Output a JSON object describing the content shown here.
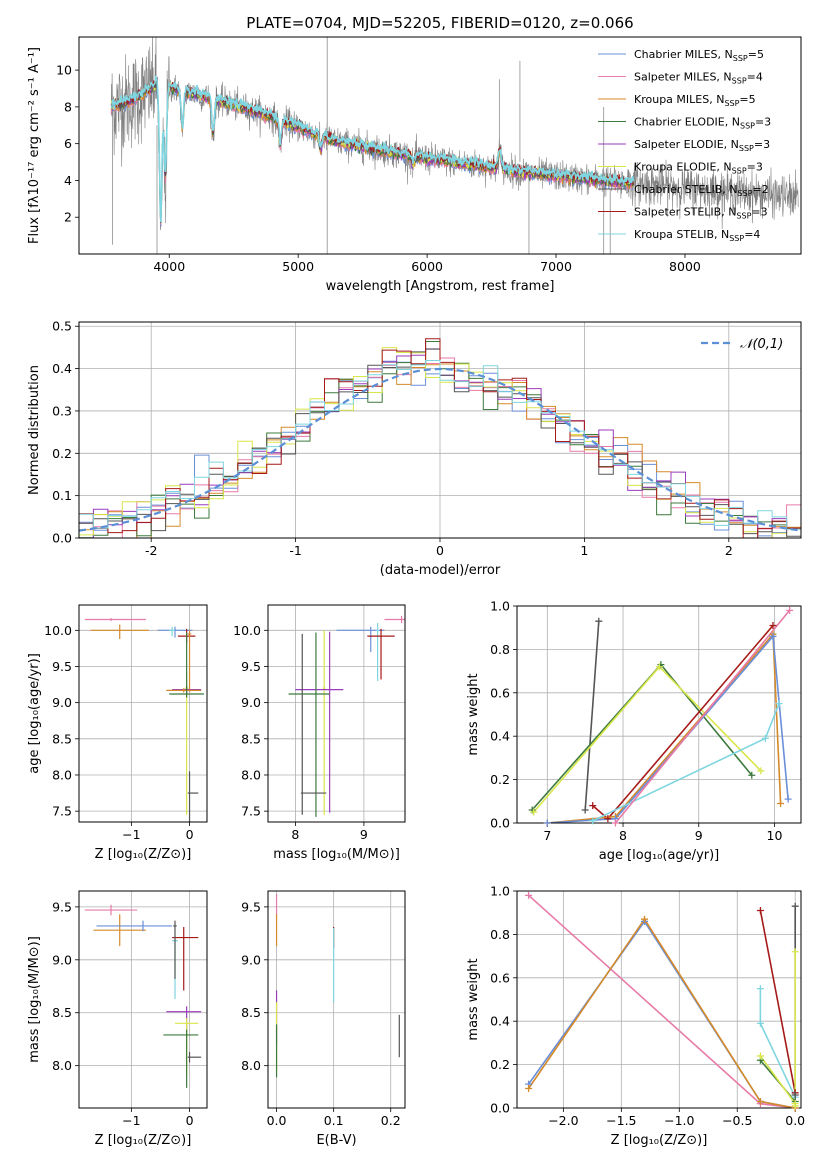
{
  "colors": {
    "chabMILES": "#6a8fd8",
    "salpMILES": "#e87aa8",
    "krouMILES": "#d58a2a",
    "chabELODIE": "#3d7a3d",
    "salpELODIE": "#9b3bbf",
    "krouELODIE": "#d8e64a",
    "chabSTELIB": "#555555",
    "salpSTELIB": "#a61a1a",
    "krouSTELIB": "#7fd6e0",
    "data": "#7f7f7f",
    "normal": "#5b8fd6"
  },
  "chart_data": [
    {
      "type": "line",
      "title": "PLATE=0704, MJD=52205, FIBERID=0120, z=0.066",
      "xlabel": "wavelength [Angstrom, rest frame]",
      "ylabel": "Flux [fλ10⁻¹⁷ erg cm⁻² s⁻¹ A⁻¹]",
      "xlim": [
        3300,
        8900
      ],
      "ylim": [
        0,
        11.8
      ],
      "xticks": [
        4000,
        5000,
        6000,
        7000,
        8000
      ],
      "yticks": [
        2,
        4,
        6,
        8,
        10
      ],
      "legend_position": "top-right",
      "series": [
        {
          "name": "Chabrier MILES, N_SSP=5",
          "key": "chabMILES"
        },
        {
          "name": "Salpeter MILES, N_SSP=4",
          "key": "salpMILES"
        },
        {
          "name": "Kroupa MILES, N_SSP=5",
          "key": "krouMILES"
        },
        {
          "name": "Chabrier ELODIE, N_SSP=3",
          "key": "chabELODIE"
        },
        {
          "name": "Salpeter ELODIE, N_SSP=3",
          "key": "salpELODIE"
        },
        {
          "name": "Kroupa ELODIE, N_SSP=3",
          "key": "krouELODIE"
        },
        {
          "name": "Chabrier STELIB, N_SSP=2",
          "key": "chabSTELIB"
        },
        {
          "name": "Salpeter STELIB, N_SSP=3",
          "key": "salpSTELIB"
        },
        {
          "name": "Kroupa STELIB, N_SSP=4",
          "key": "krouSTELIB"
        }
      ],
      "continuum": {
        "x": [
          3550,
          3700,
          3900,
          4100,
          4400,
          4700,
          5000,
          5300,
          5600,
          6000,
          6400,
          6800,
          7200,
          7500,
          8000,
          8500,
          8800
        ],
        "y": [
          8.0,
          8.3,
          9.2,
          8.9,
          8.3,
          7.7,
          6.9,
          6.1,
          5.7,
          5.2,
          4.8,
          4.4,
          4.1,
          3.9,
          3.6,
          3.3,
          3.1
        ]
      }
    },
    {
      "type": "step",
      "xlabel": "(data-model)/error",
      "ylabel": "Normed distribution",
      "xlim": [
        -2.5,
        2.5
      ],
      "ylim": [
        0,
        0.51
      ],
      "xticks": [
        -2,
        -1,
        0,
        1,
        2
      ],
      "yticks": [
        0.0,
        0.1,
        0.2,
        0.3,
        0.4,
        0.5
      ],
      "legend_position": "top-right",
      "reference": "𝒩(0,1)"
    },
    {
      "type": "errorbar",
      "xlabel": "Z [log₁₀(Z/Z⊙)]",
      "ylabel": "age  [log₁₀(age/yr)]",
      "xlim": [
        -1.9,
        0.3
      ],
      "ylim": [
        7.35,
        10.35
      ],
      "xticks": [
        -1,
        0
      ],
      "xticklabels": [
        "−1",
        "0"
      ],
      "yticks": [
        7.5,
        8.0,
        8.5,
        9.0,
        9.5,
        10.0
      ],
      "points": [
        {
          "k": "salpMILES",
          "x": -1.35,
          "xe": [
            0.45,
            0.6
          ],
          "y": 10.15,
          "ye": [
            0.02,
            0.02
          ]
        },
        {
          "k": "krouMILES",
          "x": -1.2,
          "xe": [
            0.5,
            0.5
          ],
          "y": 10.0,
          "ye": [
            0.12,
            0.08
          ]
        },
        {
          "k": "chabMILES",
          "x": -0.25,
          "xe": [
            0.3,
            0.3
          ],
          "y": 10.0,
          "ye": [
            0.1,
            0.05
          ]
        },
        {
          "k": "krouSTELIB",
          "x": -0.3,
          "xe": [
            0.05,
            0.05
          ],
          "y": 10.0,
          "ye": [
            0.08,
            0.05
          ]
        },
        {
          "k": "salpSTELIB",
          "x": -0.05,
          "xe": [
            0.15,
            0.15
          ],
          "y": 9.92,
          "ye": [
            0.1,
            0.1
          ]
        },
        {
          "k": "krouMILES",
          "x": 0.0,
          "xe": [
            0.03,
            0.03
          ],
          "y": 9.95,
          "ye": [
            0.8,
            0.05
          ]
        },
        {
          "k": "krouELODIE",
          "x": -0.05,
          "xe": [
            0.03,
            0.03
          ],
          "y": 9.2,
          "ye": [
            1.75,
            0.2
          ]
        },
        {
          "k": "salpELODIE",
          "x": -0.05,
          "xe": [
            0.25,
            0.25
          ],
          "y": 9.18,
          "ye": [
            0.05,
            0.05
          ]
        },
        {
          "k": "krouMILES",
          "x": -0.1,
          "xe": [
            0.3,
            0.3
          ],
          "y": 9.17,
          "ye": [
            0.03,
            0.03
          ]
        },
        {
          "k": "chabELODIE",
          "x": -0.05,
          "xe": [
            0.3,
            0.3
          ],
          "y": 9.12,
          "ye": [
            0.05,
            0.85
          ]
        },
        {
          "k": "chabSTELIB",
          "x": 0.0,
          "xe": [
            0.03,
            0.15
          ],
          "y": 7.75,
          "ye": [
            2.2,
            0.3
          ]
        }
      ]
    },
    {
      "type": "errorbar",
      "xlabel": "mass [log₁₀(M/M⊙)]",
      "ylabel": "",
      "xlim": [
        7.6,
        9.6
      ],
      "ylim": [
        7.35,
        10.35
      ],
      "xticks": [
        8,
        9
      ],
      "yticks": [
        7.5,
        8.0,
        8.5,
        9.0,
        9.5,
        10.0
      ],
      "points": [
        {
          "k": "salpMILES",
          "x": 9.55,
          "xe": [
            0.25,
            0.1
          ],
          "y": 10.15,
          "ye": [
            0.05,
            0.05
          ]
        },
        {
          "k": "chabMILES",
          "x": 9.1,
          "xe": [
            0.5,
            0.2
          ],
          "y": 10.0,
          "ye": [
            0.3,
            0.05
          ]
        },
        {
          "k": "krouSTELIB",
          "x": 9.2,
          "xe": [
            0.02,
            0.02
          ],
          "y": 10.0,
          "ye": [
            0.7,
            0.1
          ]
        },
        {
          "k": "salpSTELIB",
          "x": 9.25,
          "xe": [
            0.2,
            0.2
          ],
          "y": 9.92,
          "ye": [
            0.6,
            0.1
          ]
        },
        {
          "k": "krouELODIE",
          "x": 8.42,
          "xe": [
            0.02,
            0.02
          ],
          "y": 9.2,
          "ye": [
            1.75,
            0.8
          ]
        },
        {
          "k": "salpELODIE",
          "x": 8.5,
          "xe": [
            0.5,
            0.2
          ],
          "y": 9.18,
          "ye": [
            1.7,
            0.8
          ]
        },
        {
          "k": "chabELODIE",
          "x": 8.3,
          "xe": [
            0.4,
            0.2
          ],
          "y": 9.12,
          "ye": [
            1.7,
            0.85
          ]
        },
        {
          "k": "chabSTELIB",
          "x": 8.1,
          "xe": [
            0.02,
            0.35
          ],
          "y": 7.75,
          "ye": [
            0.3,
            2.2
          ]
        }
      ]
    },
    {
      "type": "line",
      "xlabel": "age  [log₁₀(age/yr)]",
      "ylabel": "mass weight",
      "xlim": [
        6.6,
        10.35
      ],
      "ylim": [
        0,
        1.0
      ],
      "xticks": [
        7,
        8,
        9,
        10
      ],
      "yticks": [
        0.0,
        0.2,
        0.4,
        0.6,
        0.8,
        1.0
      ],
      "series": [
        {
          "k": "chabSTELIB",
          "x": [
            7.5,
            7.68
          ],
          "y": [
            0.06,
            0.93
          ]
        },
        {
          "k": "chabELODIE",
          "x": [
            6.8,
            8.5,
            9.7
          ],
          "y": [
            0.06,
            0.73,
            0.22
          ]
        },
        {
          "k": "krouELODIE",
          "x": [
            6.82,
            8.48,
            9.82
          ],
          "y": [
            0.05,
            0.72,
            0.24
          ]
        },
        {
          "k": "salpSTELIB",
          "x": [
            7.6,
            7.8,
            9.98
          ],
          "y": [
            0.08,
            0.02,
            0.91
          ]
        },
        {
          "k": "krouMILES",
          "x": [
            7.0,
            7.9,
            9.98,
            10.08
          ],
          "y": [
            0.0,
            0.03,
            0.87,
            0.09
          ]
        },
        {
          "k": "chabMILES",
          "x": [
            7.0,
            7.9,
            9.98,
            10.18
          ],
          "y": [
            0.0,
            0.02,
            0.86,
            0.11
          ]
        },
        {
          "k": "krouSTELIB",
          "x": [
            7.6,
            9.88,
            10.06
          ],
          "y": [
            0.01,
            0.39,
            0.55
          ]
        },
        {
          "k": "salpMILES",
          "x": [
            7.9,
            10.2
          ],
          "y": [
            0.0,
            0.98
          ]
        }
      ]
    },
    {
      "type": "errorbar",
      "xlabel": "Z [log₁₀(Z/Z⊙)]",
      "ylabel": "mass [log₁₀(M/M⊙)]",
      "xlim": [
        -1.9,
        0.3
      ],
      "ylim": [
        7.6,
        9.65
      ],
      "xticks": [
        -1,
        0
      ],
      "xticklabels": [
        "−1",
        "0"
      ],
      "yticks": [
        8.0,
        8.5,
        9.0,
        9.5
      ],
      "points": [
        {
          "k": "salpMILES",
          "x": -1.35,
          "xe": [
            0.45,
            0.45
          ],
          "y": 9.47,
          "ye": [
            0.05,
            0.05
          ]
        },
        {
          "k": "krouMILES",
          "x": -1.2,
          "xe": [
            0.45,
            0.45
          ],
          "y": 9.28,
          "ye": [
            0.15,
            0.15
          ]
        },
        {
          "k": "chabMILES",
          "x": -0.8,
          "xe": [
            0.8,
            0.5
          ],
          "y": 9.32,
          "ye": [
            0.05,
            0.05
          ]
        },
        {
          "k": "krouSTELIB",
          "x": -0.25,
          "xe": [
            0.05,
            0.05
          ],
          "y": 9.18,
          "ye": [
            0.55,
            0.05
          ]
        },
        {
          "k": "salpSTELIB",
          "x": -0.1,
          "xe": [
            0.2,
            0.25
          ],
          "y": 9.21,
          "ye": [
            0.5,
            0.1
          ]
        },
        {
          "k": "chabSTELIB",
          "x": -0.25,
          "xe": [
            0.03,
            0.03
          ],
          "y": 9.32,
          "ye": [
            0.5,
            0.05
          ]
        },
        {
          "k": "salpELODIE",
          "x": -0.05,
          "xe": [
            0.35,
            0.25
          ],
          "y": 8.51,
          "ye": [
            0.2,
            0.05
          ]
        },
        {
          "k": "krouELODIE",
          "x": -0.05,
          "xe": [
            0.2,
            0.2
          ],
          "y": 8.4,
          "ye": [
            0.5,
            0.05
          ]
        },
        {
          "k": "chabELODIE",
          "x": -0.05,
          "xe": [
            0.4,
            0.2
          ],
          "y": 8.29,
          "ye": [
            0.5,
            0.05
          ]
        },
        {
          "k": "chabSTELIB",
          "x": 0.0,
          "xe": [
            0.03,
            0.2
          ],
          "y": 8.08,
          "ye": [
            0.05,
            0.05
          ]
        }
      ]
    },
    {
      "type": "errorbar",
      "xlabel": "E(B-V)",
      "ylabel": "",
      "xlim": [
        -0.015,
        0.225
      ],
      "ylim": [
        7.6,
        9.65
      ],
      "xticks": [
        0.0,
        0.1,
        0.2
      ],
      "xticklabels": [
        "0.0",
        "0.1",
        "0.2"
      ],
      "yticks": [
        8.0,
        8.5,
        9.0,
        9.5
      ],
      "points": [
        {
          "k": "salpMILES",
          "x": 0.0,
          "xe": [
            0,
            0
          ],
          "y": 9.47,
          "ye": [
            0.05,
            0.15
          ]
        },
        {
          "k": "krouMILES",
          "x": 0.0,
          "xe": [
            0,
            0
          ],
          "y": 9.28,
          "ye": [
            0.15,
            0.15
          ]
        },
        {
          "k": "salpELODIE",
          "x": 0.0,
          "xe": [
            0,
            0
          ],
          "y": 8.51,
          "ye": [
            0.3,
            0.2
          ]
        },
        {
          "k": "krouELODIE",
          "x": 0.0,
          "xe": [
            0,
            0
          ],
          "y": 8.4,
          "ye": [
            0.45,
            0.2
          ]
        },
        {
          "k": "chabELODIE",
          "x": 0.0,
          "xe": [
            0,
            0
          ],
          "y": 8.29,
          "ye": [
            0.4,
            0.1
          ]
        },
        {
          "k": "salpSTELIB",
          "x": 0.1,
          "xe": [
            0,
            0
          ],
          "y": 9.21,
          "ye": [
            0.1,
            0.1
          ]
        },
        {
          "k": "krouSTELIB",
          "x": 0.1,
          "xe": [
            0,
            0
          ],
          "y": 9.0,
          "ye": [
            0.4,
            0.3
          ]
        },
        {
          "k": "chabSTELIB",
          "x": 0.215,
          "xe": [
            0,
            0
          ],
          "y": 8.28,
          "ye": [
            0.2,
            0.2
          ]
        }
      ]
    },
    {
      "type": "line",
      "xlabel": "Z [log₁₀(Z/Z⊙)]",
      "ylabel": "mass weight",
      "xlim": [
        -2.4,
        0.05
      ],
      "ylim": [
        0,
        1.0
      ],
      "xticks": [
        -2.0,
        -1.5,
        -1.0,
        -0.5,
        0.0
      ],
      "xticklabels": [
        "−2.0",
        "−1.5",
        "−1.0",
        "−0.5",
        "0.0"
      ],
      "yticks": [
        0.0,
        0.2,
        0.4,
        0.6,
        0.8,
        1.0
      ],
      "series": [
        {
          "k": "salpMILES",
          "x": [
            -2.3,
            -0.3,
            0.0
          ],
          "y": [
            0.98,
            0.02,
            0.0
          ]
        },
        {
          "k": "chabMILES",
          "x": [
            -2.3,
            -1.3,
            -0.3,
            0.0
          ],
          "y": [
            0.11,
            0.86,
            0.03,
            0.0
          ]
        },
        {
          "k": "krouMILES",
          "x": [
            -2.3,
            -1.3,
            -0.3,
            0.0
          ],
          "y": [
            0.09,
            0.87,
            0.03,
            0.0
          ]
        },
        {
          "k": "salpSTELIB",
          "x": [
            -0.3,
            0.0
          ],
          "y": [
            0.91,
            0.07
          ]
        },
        {
          "k": "krouSTELIB",
          "x": [
            -0.3,
            -0.3,
            0.0
          ],
          "y": [
            0.55,
            0.39,
            0.05
          ]
        },
        {
          "k": "chabELODIE",
          "x": [
            -0.3,
            0.0
          ],
          "y": [
            0.22,
            0.03
          ]
        },
        {
          "k": "krouELODIE",
          "x": [
            -0.3,
            0.0
          ],
          "y": [
            0.24,
            0.02
          ]
        },
        {
          "k": "chabSTELIB",
          "x": [
            0.0,
            0.0
          ],
          "y": [
            0.93,
            0.06
          ]
        },
        {
          "k": "krouELODIE",
          "x": [
            0.0,
            0.0
          ],
          "y": [
            0.72,
            0.01
          ]
        }
      ]
    }
  ]
}
